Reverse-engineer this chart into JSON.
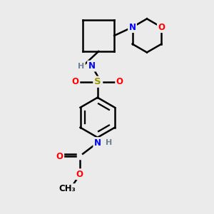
{
  "bg_color": "#ebebeb",
  "bond_color": "#000000",
  "bond_width": 1.8,
  "atom_colors": {
    "N": "#0000ff",
    "O": "#ff0000",
    "S": "#999900",
    "H": "#708090",
    "C": "#000000"
  },
  "font_size": 8.5,
  "fig_w": 3.0,
  "fig_h": 3.0,
  "dpi": 100,
  "xlim": [
    0,
    10
  ],
  "ylim": [
    0,
    10
  ]
}
